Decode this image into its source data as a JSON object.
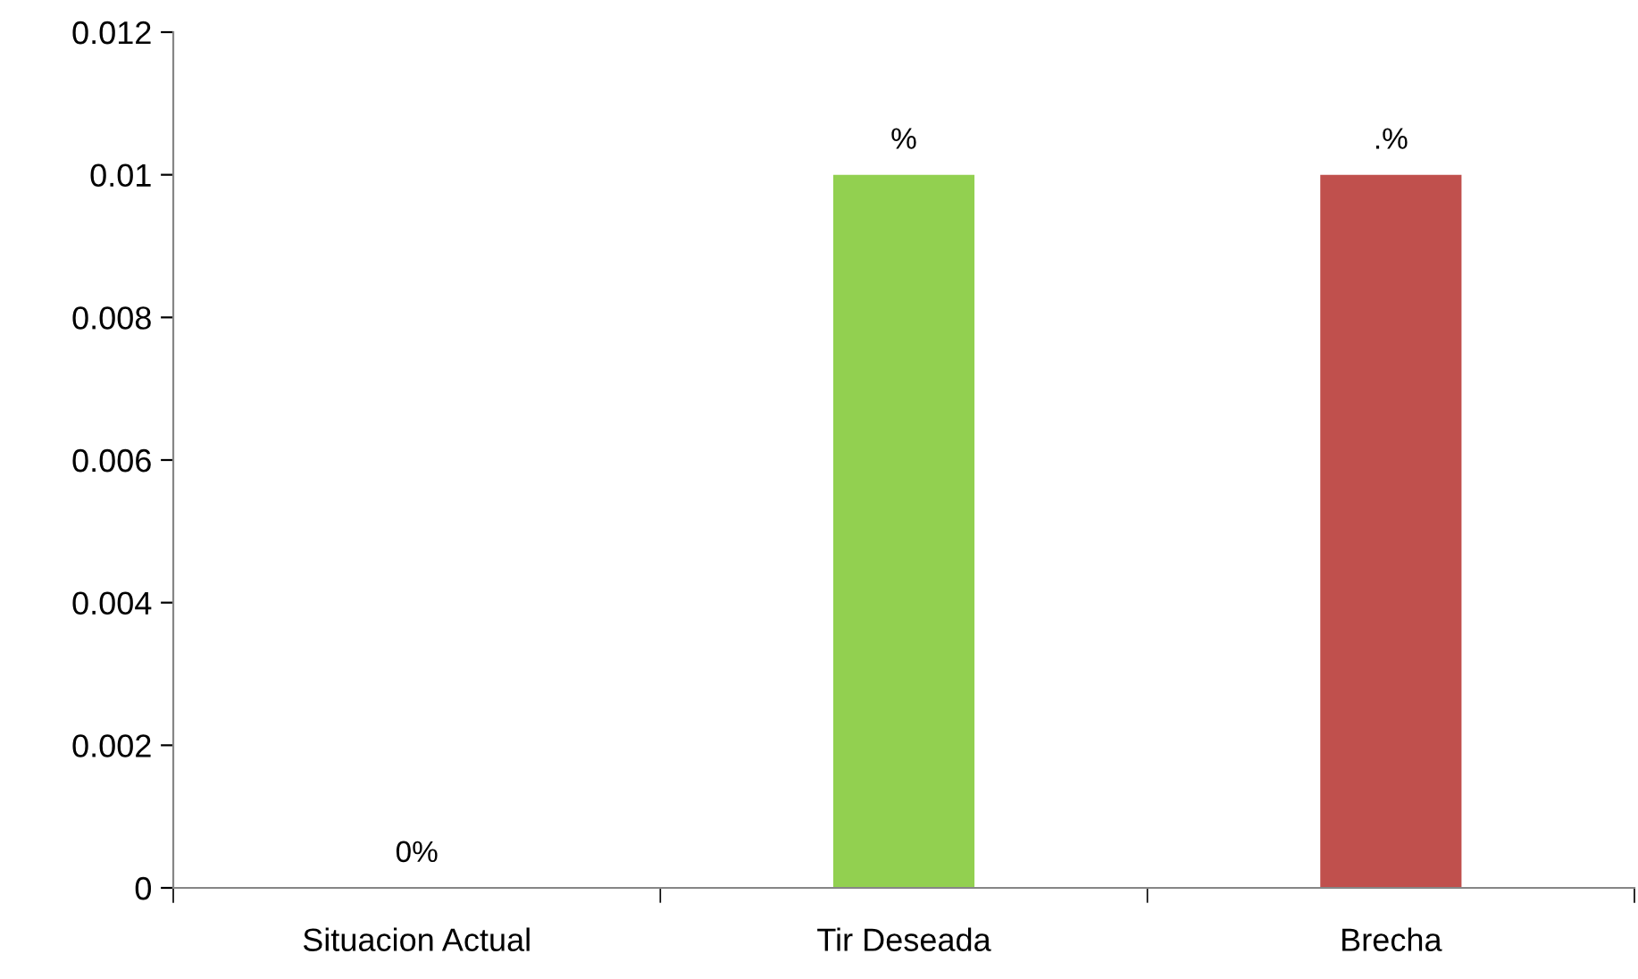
{
  "chart_data": {
    "type": "bar",
    "categories": [
      "Situacion Actual",
      "Tir Deseada",
      "Brecha"
    ],
    "values": [
      0,
      0.01,
      0.01
    ],
    "colors": [
      "#4f81bd",
      "#92d050",
      "#c0504d"
    ],
    "value_labels": [
      "0%",
      "%",
      ".%"
    ],
    "ylim": [
      0,
      0.012
    ],
    "yticks": [
      0,
      0.002,
      0.004,
      0.006,
      0.008,
      0.01,
      0.012
    ],
    "grid": false,
    "legend": false
  }
}
